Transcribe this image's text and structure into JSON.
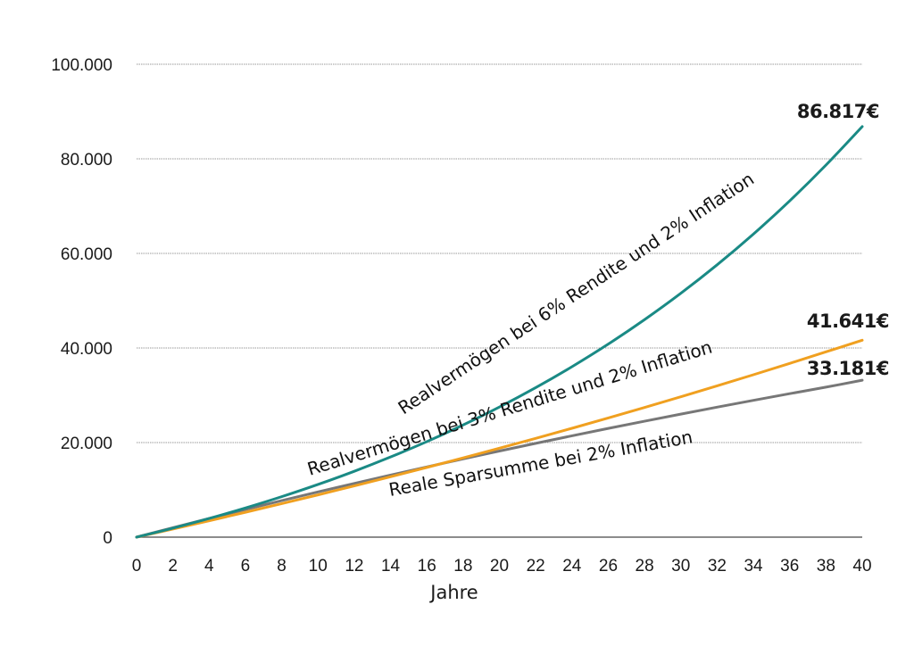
{
  "chart_data": {
    "type": "line",
    "title": "",
    "xlabel": "Jahre",
    "ylabel": "",
    "xlim": [
      0,
      40
    ],
    "ylim": [
      0,
      100000
    ],
    "grid": true,
    "x": [
      0,
      2,
      4,
      6,
      8,
      10,
      12,
      14,
      16,
      18,
      20,
      22,
      24,
      26,
      28,
      30,
      32,
      34,
      36,
      38,
      40
    ],
    "x_tick_labels": [
      "0",
      "2",
      "4",
      "6",
      "8",
      "10",
      "12",
      "14",
      "16",
      "18",
      "20",
      "22",
      "24",
      "26",
      "28",
      "30",
      "32",
      "34",
      "36",
      "38",
      "40"
    ],
    "y_ticks": [
      0,
      20000,
      40000,
      60000,
      80000,
      100000
    ],
    "y_tick_labels": [
      "0",
      "20.000",
      "40.000",
      "60.000",
      "80.000",
      "100.000"
    ],
    "series": [
      {
        "name": "Realvermögen bei 6% Rendite und 2% Inflation",
        "color": "#1a8a85",
        "end_label": "86.817€",
        "values": [
          0,
          1900,
          3950,
          6170,
          8560,
          11140,
          13930,
          16950,
          20200,
          23720,
          27510,
          31610,
          36040,
          40820,
          45990,
          51560,
          57580,
          64080,
          71100,
          78680,
          86817
        ]
      },
      {
        "name": "Realvermögen bei 3% Rendite und 2% Inflation",
        "color": "#f0a020",
        "end_label": "41.641€",
        "values": [
          0,
          1720,
          3470,
          5260,
          7080,
          8940,
          10840,
          12770,
          14740,
          16750,
          18800,
          20890,
          23020,
          25200,
          27420,
          29680,
          31990,
          34340,
          36740,
          39180,
          41641
        ]
      },
      {
        "name": "Reale Sparsumme bei 2% Inflation",
        "color": "#777777",
        "end_label": "33.181€",
        "values": [
          0,
          1990,
          3940,
          5850,
          7720,
          9560,
          11360,
          13120,
          14850,
          16550,
          18210,
          19840,
          21430,
          22990,
          24520,
          26020,
          27490,
          28930,
          30340,
          31720,
          33181
        ]
      }
    ]
  }
}
